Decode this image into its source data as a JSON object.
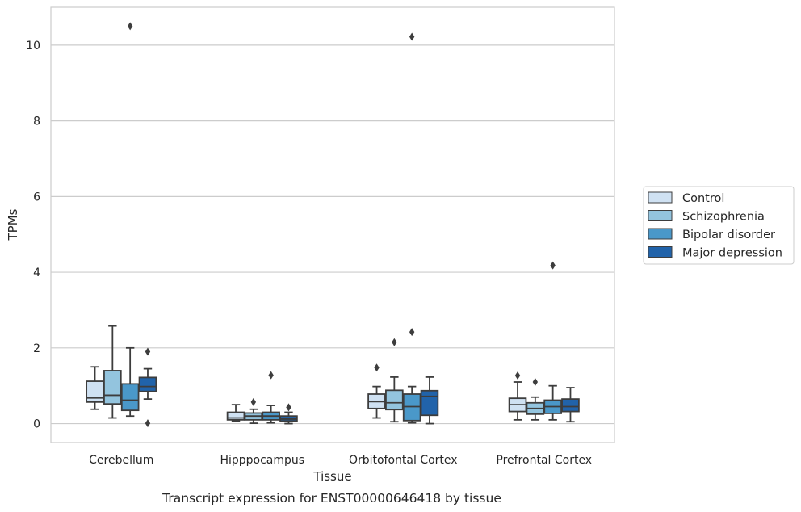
{
  "caption": "Transcript expression for ENST00000646418 by tissue",
  "chart_data": {
    "type": "box",
    "xlabel": "Tissue",
    "ylabel": "TPMs",
    "ylim": [
      -0.5,
      11
    ],
    "yticks": [
      0,
      2,
      4,
      6,
      8,
      10
    ],
    "grid": "horizontal",
    "legend_placement": "right",
    "categories": [
      "Cerebellum",
      "Hipppocampus",
      "Orbitofontal Cortex",
      "Prefrontal Cortex"
    ],
    "series": [
      {
        "name": "Control",
        "color": "#cfe1f2",
        "boxes": [
          {
            "whislo": 0.38,
            "q1": 0.57,
            "med": 0.68,
            "q3": 1.12,
            "whishi": 1.5,
            "fliers": []
          },
          {
            "whislo": 0.07,
            "q1": 0.1,
            "med": 0.15,
            "q3": 0.3,
            "whishi": 0.5,
            "fliers": []
          },
          {
            "whislo": 0.15,
            "q1": 0.4,
            "med": 0.58,
            "q3": 0.78,
            "whishi": 0.98,
            "fliers": [
              1.48
            ]
          },
          {
            "whislo": 0.1,
            "q1": 0.32,
            "med": 0.5,
            "q3": 0.67,
            "whishi": 1.1,
            "fliers": [
              1.27
            ]
          }
        ]
      },
      {
        "name": "Schizophrenia",
        "color": "#93c4de",
        "boxes": [
          {
            "whislo": 0.15,
            "q1": 0.52,
            "med": 0.75,
            "q3": 1.4,
            "whishi": 2.58,
            "fliers": []
          },
          {
            "whislo": 0.01,
            "q1": 0.1,
            "med": 0.2,
            "q3": 0.28,
            "whishi": 0.38,
            "fliers": [
              0.57
            ]
          },
          {
            "whislo": 0.05,
            "q1": 0.37,
            "med": 0.55,
            "q3": 0.88,
            "whishi": 1.23,
            "fliers": [
              2.15
            ]
          },
          {
            "whislo": 0.1,
            "q1": 0.25,
            "med": 0.4,
            "q3": 0.55,
            "whishi": 0.7,
            "fliers": [
              1.1
            ]
          }
        ]
      },
      {
        "name": "Bipolar disorder",
        "color": "#4a98c9",
        "boxes": [
          {
            "whislo": 0.2,
            "q1": 0.35,
            "med": 0.62,
            "q3": 1.05,
            "whishi": 2.0,
            "fliers": [
              10.5
            ]
          },
          {
            "whislo": 0.02,
            "q1": 0.1,
            "med": 0.2,
            "q3": 0.3,
            "whishi": 0.48,
            "fliers": [
              1.28
            ]
          },
          {
            "whislo": 0.02,
            "q1": 0.08,
            "med": 0.45,
            "q3": 0.78,
            "whishi": 0.98,
            "fliers": [
              2.42,
              10.22
            ]
          },
          {
            "whislo": 0.1,
            "q1": 0.27,
            "med": 0.45,
            "q3": 0.62,
            "whishi": 1.0,
            "fliers": [
              4.18
            ]
          }
        ]
      },
      {
        "name": "Major depression",
        "color": "#2163aa",
        "boxes": [
          {
            "whislo": 0.65,
            "q1": 0.85,
            "med": 0.98,
            "q3": 1.22,
            "whishi": 1.45,
            "fliers": [
              1.9,
              0.01
            ]
          },
          {
            "whislo": 0.0,
            "q1": 0.07,
            "med": 0.12,
            "q3": 0.2,
            "whishi": 0.3,
            "fliers": [
              0.43
            ]
          },
          {
            "whislo": 0.0,
            "q1": 0.22,
            "med": 0.72,
            "q3": 0.87,
            "whishi": 1.23,
            "fliers": []
          },
          {
            "whislo": 0.05,
            "q1": 0.32,
            "med": 0.45,
            "q3": 0.65,
            "whishi": 0.95,
            "fliers": []
          }
        ]
      }
    ]
  }
}
